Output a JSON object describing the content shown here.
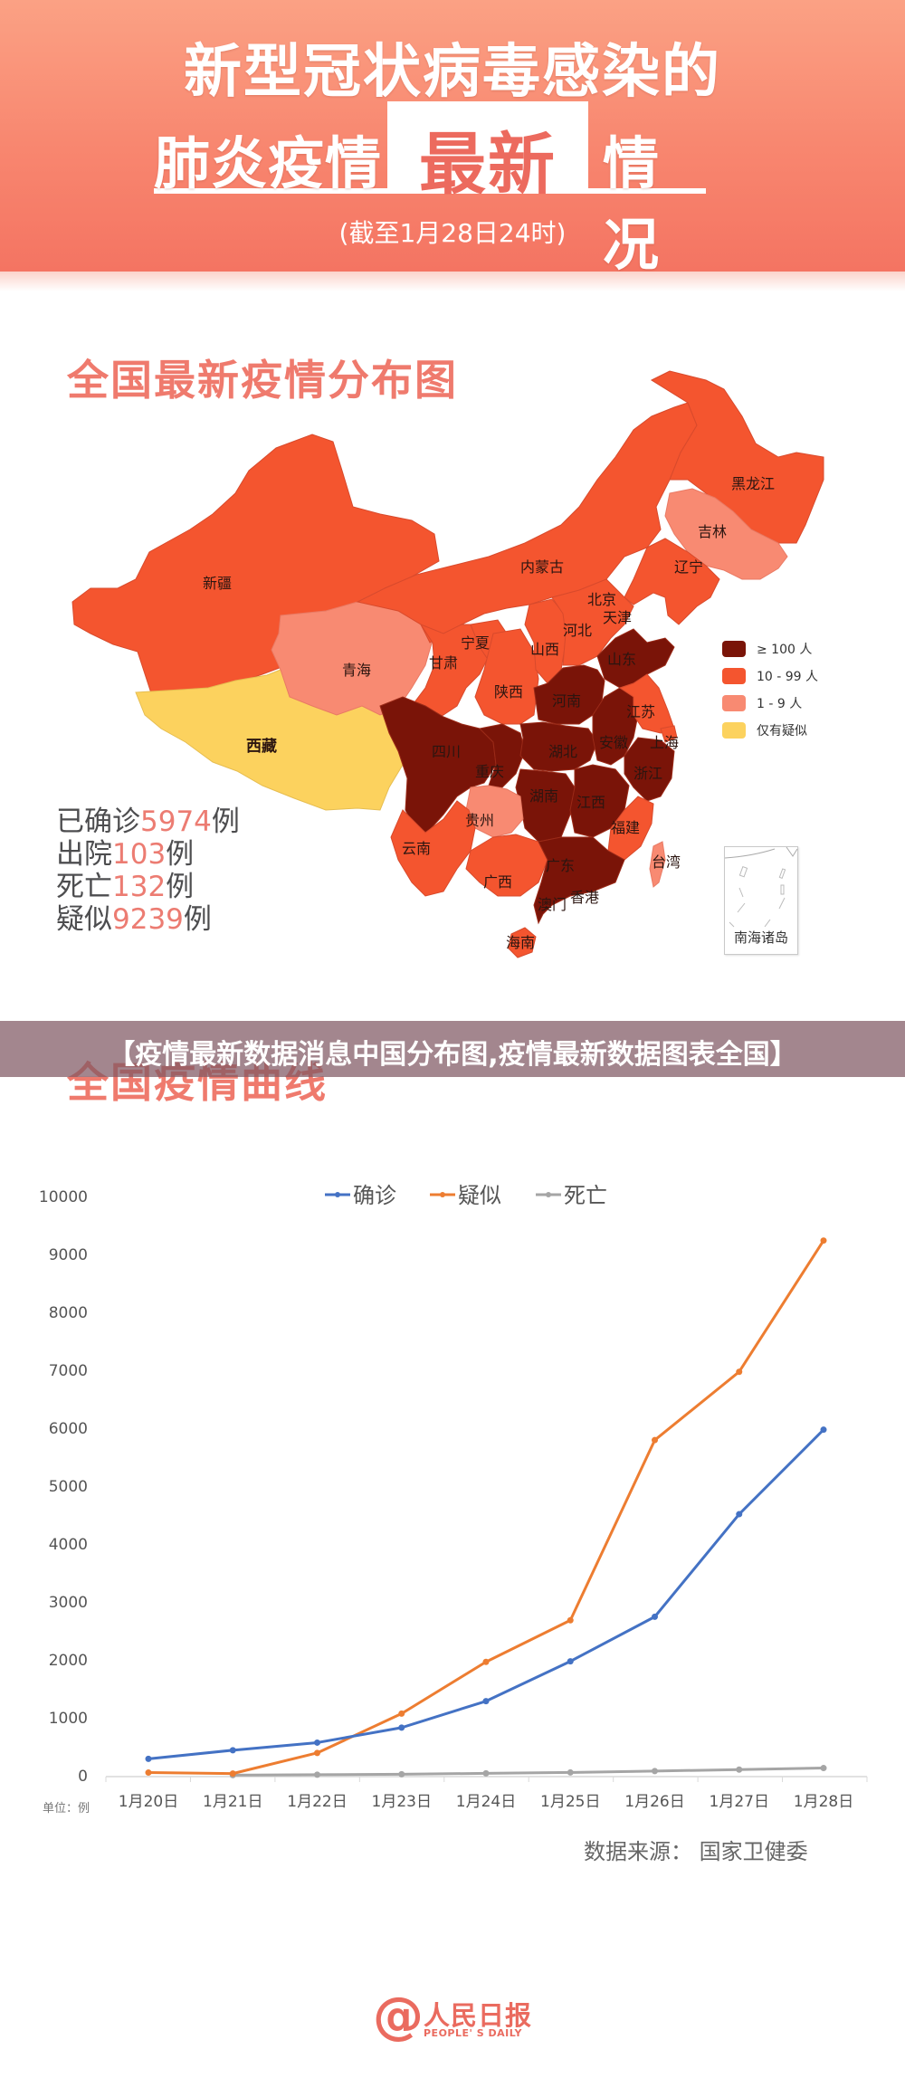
{
  "header": {
    "title_line1": "新型冠状病毒感染的",
    "title_line2_left": "肺炎疫情",
    "title_line2_highlight": "最新",
    "title_line2_right": "情况",
    "subtitle": "(截至1月28日24时)"
  },
  "map_section": {
    "title": "全国最新疫情分布图",
    "legend": [
      {
        "label": "≥ 100 人",
        "color": "#7a1408"
      },
      {
        "label": "10 - 99 人",
        "color": "#f4552f"
      },
      {
        "label": "1 - 9 人",
        "color": "#f88a72"
      },
      {
        "label": "仅有疑似",
        "color": "#fcd25e"
      }
    ],
    "provinces": {
      "xinjiang": "新疆",
      "xizang": "西藏",
      "qinghai": "青海",
      "gansu": "甘肃",
      "ningxia": "宁夏",
      "neimenggu": "内蒙古",
      "heilongjiang": "黑龙江",
      "jilin": "吉林",
      "liaoning": "辽宁",
      "beijing": "北京",
      "tianjin": "天津",
      "hebei": "河北",
      "shanxi": "山西",
      "shaanxi": "陕西",
      "shandong": "山东",
      "henan": "河南",
      "jiangsu": "江苏",
      "anhui": "安徽",
      "shanghai": "上海",
      "hubei": "湖北",
      "sichuan": "四川",
      "chongqing": "重庆",
      "zhejiang": "浙江",
      "hunan": "湖南",
      "jiangxi": "江西",
      "guizhou": "贵州",
      "fujian": "福建",
      "yunnan": "云南",
      "guangxi": "广西",
      "guangdong": "广东",
      "taiwan": "台湾",
      "xianggang": "香港",
      "aomen": "澳门",
      "hainan": "海南"
    },
    "inset_label": "南海诸岛",
    "stats": [
      {
        "label": "已确诊",
        "value": "5974",
        "unit": "例"
      },
      {
        "label": "出院",
        "value": "103",
        "unit": "例"
      },
      {
        "label": "死亡",
        "value": "132",
        "unit": "例"
      },
      {
        "label": "疑似",
        "value": "9239",
        "unit": "例"
      }
    ]
  },
  "overlay_banner": {
    "text": "【疫情最新数据消息中国分布图,疫情最新数据图表全国】"
  },
  "curve_section": {
    "title": "全国疫情曲线",
    "unit_label": "单位：例",
    "source": "数据来源：  国家卫健委"
  },
  "logo": {
    "at_symbol": "@",
    "name_cn": "人民日报",
    "name_en": "PEOPLE' S DAILY"
  },
  "chart_data": {
    "type": "line",
    "title": "全国疫情曲线",
    "xlabel": "",
    "ylabel": "单位：例",
    "categories": [
      "1月20日",
      "1月21日",
      "1月22日",
      "1月23日",
      "1月24日",
      "1月25日",
      "1月26日",
      "1月27日",
      "1月28日"
    ],
    "yticks": [
      0,
      1000,
      2000,
      3000,
      4000,
      5000,
      6000,
      7000,
      8000,
      9000,
      10000
    ],
    "ylim": [
      0,
      10000
    ],
    "grid": false,
    "legend_position": "top",
    "series": [
      {
        "name": "确诊",
        "color": "#4472c4",
        "values": [
          291,
          440,
          571,
          830,
          1287,
          1975,
          2744,
          4515,
          5974
        ]
      },
      {
        "name": "疑似",
        "color": "#ed7d31",
        "values": [
          54,
          37,
          393,
          1072,
          1965,
          2684,
          5794,
          6973,
          9239
        ]
      },
      {
        "name": "死亡",
        "color": "#a5a5a5",
        "values": [
          null,
          9,
          17,
          25,
          41,
          56,
          80,
          106,
          132
        ]
      }
    ],
    "source": "数据来源：国家卫健委"
  }
}
